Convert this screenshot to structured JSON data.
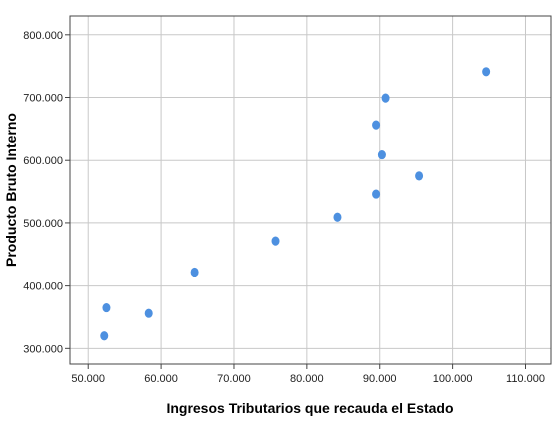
{
  "chart_data": {
    "type": "scatter",
    "xlabel": "Ingresos Tributarios que recauda el Estado",
    "ylabel": "Producto Bruto Interno",
    "xlim": [
      47500,
      113500
    ],
    "ylim": [
      275000,
      830000
    ],
    "x_ticks": [
      50000,
      60000,
      70000,
      80000,
      90000,
      100000,
      110000
    ],
    "x_tick_labels": [
      "50.000",
      "60.000",
      "70.000",
      "80.000",
      "90.000",
      "100.000",
      "110.000"
    ],
    "y_ticks": [
      300000,
      400000,
      500000,
      600000,
      700000,
      800000
    ],
    "y_tick_labels": [
      "300.000",
      "400.000",
      "500.000",
      "600.000",
      "700.000",
      "800.000"
    ],
    "grid": true,
    "point_color": "#4d90e0",
    "points": [
      {
        "x": 52200,
        "y": 320000
      },
      {
        "x": 52500,
        "y": 365000
      },
      {
        "x": 58300,
        "y": 356000
      },
      {
        "x": 64600,
        "y": 421000
      },
      {
        "x": 75700,
        "y": 471000
      },
      {
        "x": 84200,
        "y": 509000
      },
      {
        "x": 89500,
        "y": 546000
      },
      {
        "x": 89500,
        "y": 656000
      },
      {
        "x": 90300,
        "y": 609000
      },
      {
        "x": 90800,
        "y": 699000
      },
      {
        "x": 95400,
        "y": 575000
      },
      {
        "x": 104600,
        "y": 741000
      }
    ]
  }
}
